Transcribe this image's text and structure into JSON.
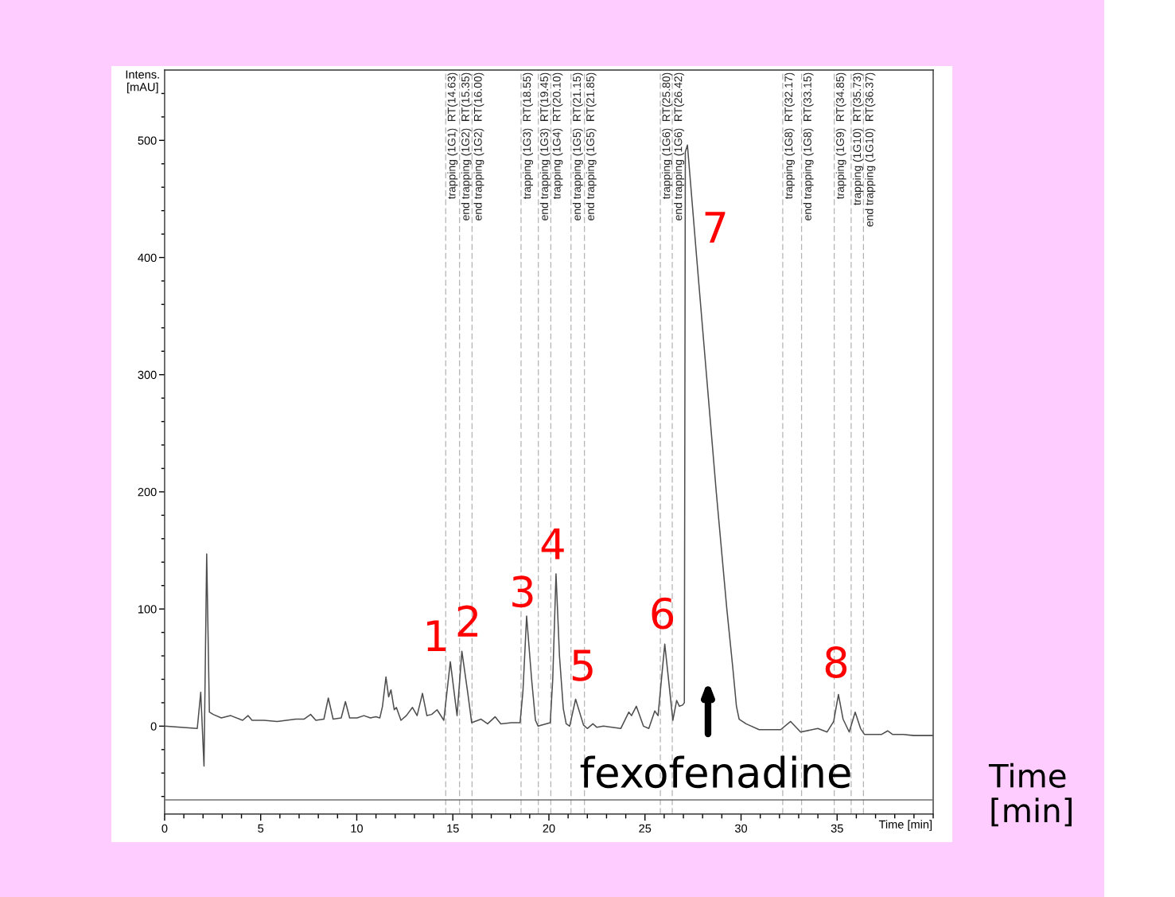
{
  "chart_data": {
    "type": "line",
    "xlabel": "Time [min]",
    "ylabel": "Intens.\n[mAU]",
    "xlim": [
      0,
      40
    ],
    "ylim": [
      -75,
      560
    ],
    "xticks": [
      0,
      {
        "value": 1,
        "label": null
      },
      {
        "value": 2,
        "label": null
      },
      {
        "value": 3,
        "label": null
      },
      {
        "value": 4,
        "label": null
      },
      5,
      {
        "value": 6,
        "label": null
      },
      {
        "value": 7,
        "label": null
      },
      {
        "value": 8,
        "label": null
      },
      {
        "value": 9,
        "label": null
      },
      10,
      {
        "value": 11,
        "label": null
      },
      {
        "value": 12,
        "label": null
      },
      {
        "value": 13,
        "label": null
      },
      {
        "value": 14,
        "label": null
      },
      15,
      {
        "value": 16,
        "label": null
      },
      {
        "value": 17,
        "label": null
      },
      {
        "value": 18,
        "label": null
      },
      {
        "value": 19,
        "label": null
      },
      20,
      {
        "value": 21,
        "label": null
      },
      {
        "value": 22,
        "label": null
      },
      {
        "value": 23,
        "label": null
      },
      {
        "value": 24,
        "label": null
      },
      25,
      {
        "value": 26,
        "label": null
      },
      {
        "value": 27,
        "label": null
      },
      {
        "value": 28,
        "label": null
      },
      {
        "value": 29,
        "label": null
      },
      30,
      {
        "value": 31,
        "label": null
      },
      {
        "value": 32,
        "label": null
      },
      {
        "value": 33,
        "label": null
      },
      {
        "value": 34,
        "label": null
      },
      35,
      {
        "value": 36,
        "label": null
      },
      {
        "value": 37,
        "label": null
      },
      {
        "value": 38,
        "label": null
      },
      {
        "value": 39,
        "label": null
      },
      {
        "value": 40,
        "label": null
      }
    ],
    "yticks": [
      {
        "value": -60,
        "label": null
      },
      {
        "value": -40,
        "label": null
      },
      {
        "value": -20,
        "label": null
      },
      0,
      {
        "value": 20,
        "label": null
      },
      {
        "value": 40,
        "label": null
      },
      {
        "value": 60,
        "label": null
      },
      {
        "value": 80,
        "label": null
      },
      100,
      {
        "value": 120,
        "label": null
      },
      {
        "value": 140,
        "label": null
      },
      {
        "value": 160,
        "label": null
      },
      {
        "value": 180,
        "label": null
      },
      200,
      {
        "value": 220,
        "label": null
      },
      {
        "value": 240,
        "label": null
      },
      {
        "value": 260,
        "label": null
      },
      {
        "value": 280,
        "label": null
      },
      300,
      {
        "value": 320,
        "label": null
      },
      {
        "value": 340,
        "label": null
      },
      {
        "value": 360,
        "label": null
      },
      {
        "value": 380,
        "label": null
      },
      400,
      {
        "value": 420,
        "label": null
      },
      {
        "value": 440,
        "label": null
      },
      {
        "value": 460,
        "label": null
      },
      {
        "value": 480,
        "label": null
      },
      500,
      {
        "value": 520,
        "label": null
      },
      {
        "value": 540,
        "label": null
      }
    ],
    "series": [
      {
        "color": "#4d4d4d",
        "x": [
          0,
          1.7,
          1.88,
          2.05,
          2.19,
          2.33,
          2.53,
          2.95,
          3.44,
          4.06,
          4.34,
          4.55,
          5.17,
          5.86,
          6.83,
          7.25,
          7.6,
          7.87,
          8.29,
          8.52,
          8.77,
          9.19,
          9.41,
          9.63,
          10.02,
          10.37,
          10.71,
          10.99,
          11.2,
          11.34,
          11.52,
          11.66,
          11.78,
          11.95,
          12.06,
          12.3,
          12.58,
          12.9,
          13.14,
          13.42,
          13.65,
          13.9,
          14.18,
          14.53,
          14.87,
          15.22,
          15.47,
          15.78,
          15.98,
          16.47,
          16.81,
          17.2,
          17.5,
          18.05,
          18.5,
          18.65,
          18.84,
          19.1,
          19.3,
          19.44,
          20.07,
          20.2,
          20.37,
          20.55,
          20.75,
          20.9,
          21.08,
          21.39,
          21.8,
          22.0,
          22.29,
          22.5,
          22.84,
          23.74,
          24.16,
          24.3,
          24.55,
          24.92,
          25.2,
          25.51,
          25.68,
          26.03,
          26.2,
          26.45,
          26.65,
          26.79,
          26.96,
          27.05,
          27.1,
          27.21,
          27.69,
          28.2,
          28.71,
          29.26,
          29.57,
          29.76,
          29.9,
          30.26,
          30.4,
          30.94,
          32.06,
          32.58,
          33.1,
          34.0,
          34.48,
          34.82,
          35.07,
          35.31,
          35.63,
          35.94,
          36.22,
          36.42,
          37.32,
          37.63,
          37.88,
          38.43,
          38.99,
          40
        ],
        "values": [
          0,
          -2,
          29,
          -34,
          147,
          12,
          10,
          7,
          9,
          5,
          9,
          5,
          5,
          4,
          6,
          6,
          10,
          5,
          6,
          24,
          6,
          7,
          21,
          7,
          7,
          9,
          7,
          8,
          7,
          17,
          42,
          25,
          31,
          14,
          16,
          5,
          9,
          16,
          9,
          28,
          9,
          10,
          14,
          5,
          55,
          9,
          64,
          28,
          3,
          6,
          2,
          8,
          2,
          3,
          3,
          30,
          94,
          40,
          5,
          0,
          3,
          40,
          130,
          60,
          15,
          2,
          0,
          23,
          1,
          -2,
          2,
          -1,
          0,
          -2,
          12,
          9,
          17,
          0,
          -2,
          13,
          9,
          70,
          44,
          5,
          22,
          17,
          18,
          20,
          490,
          496,
          400,
          300,
          200,
          100,
          50,
          17,
          6,
          2,
          1,
          -3,
          -3,
          4,
          -5,
          -2,
          -5,
          4,
          27,
          6,
          -5,
          12,
          -2,
          -7,
          -7,
          -4,
          -7,
          -7,
          -8,
          -8
        ]
      },
      {
        "color": "#6e6e6e",
        "x": [
          0,
          40
        ],
        "values": [
          -63,
          -63
        ]
      }
    ],
    "ref_lines": [
      {
        "axis": "x",
        "value": 14.63,
        "label": "trapping (1G1)  RT(14.63)",
        "color": "#b4b4b4",
        "line_style": "dashed"
      },
      {
        "axis": "x",
        "value": 15.35,
        "label": "end trapping (1G2)  RT(15.35)",
        "color": "#b4b4b4",
        "line_style": "dashed"
      },
      {
        "axis": "x",
        "value": 16.0,
        "label": "end trapping (1G2)  RT(16.00)",
        "color": "#b4b4b4",
        "line_style": "dashed"
      },
      {
        "axis": "x",
        "value": 18.55,
        "label": "trapping (1G3)  RT(18.55)",
        "color": "#b4b4b4",
        "line_style": "dashed"
      },
      {
        "axis": "x",
        "value": 19.45,
        "label": "end trapping (1G3)  RT(19.45)",
        "color": "#b4b4b4",
        "line_style": "dashed"
      },
      {
        "axis": "x",
        "value": 20.1,
        "label": "trapping (1G4)  RT(20.10)",
        "color": "#b4b4b4",
        "line_style": "dashed"
      },
      {
        "axis": "x",
        "value": 21.15,
        "label": "end trapping (1G5)  RT(21.15)",
        "color": "#b4b4b4",
        "line_style": "dashed"
      },
      {
        "axis": "x",
        "value": 21.85,
        "label": "end trapping (1G5)  RT(21.85)",
        "color": "#b4b4b4",
        "line_style": "dashed"
      },
      {
        "axis": "x",
        "value": 25.8,
        "label": "trapping (1G6)  RT(25.80)",
        "color": "#b4b4b4",
        "line_style": "dashed"
      },
      {
        "axis": "x",
        "value": 26.42,
        "label": "end trapping (1G6)  RT(26.42)",
        "color": "#b4b4b4",
        "line_style": "dashed"
      },
      {
        "axis": "x",
        "value": 32.17,
        "label": "trapping (1G8)  RT(32.17)",
        "color": "#b4b4b4",
        "line_style": "dashed"
      },
      {
        "axis": "x",
        "value": 33.15,
        "label": "end trapping (1G8)  RT(33.15)",
        "color": "#b4b4b4",
        "line_style": "dashed"
      },
      {
        "axis": "x",
        "value": 34.85,
        "label": "trapping (1G9)  RT(34.85)",
        "color": "#b4b4b4",
        "line_style": "dashed"
      },
      {
        "axis": "x",
        "value": 35.73,
        "label": "trapping (1G10)  RT(35.73)",
        "color": "#b4b4b4",
        "line_style": "dashed"
      },
      {
        "axis": "x",
        "value": 36.37,
        "label": "end trapping (1G10)  RT(36.37)",
        "color": "#b4b4b4",
        "line_style": "dashed"
      }
    ],
    "annotations": [
      {
        "text": "1",
        "x": 14.87,
        "y": 55
      },
      {
        "text": "2",
        "x": 15.47,
        "y": 64
      },
      {
        "text": "3",
        "x": 18.84,
        "y": 94
      },
      {
        "text": "4",
        "x": 20.37,
        "y": 130
      },
      {
        "text": "5",
        "x": 21.39,
        "y": 23
      },
      {
        "text": "6",
        "x": 26.03,
        "y": 70
      },
      {
        "text": "7",
        "x": 27.21,
        "y": 496
      },
      {
        "text": "8",
        "x": 35.07,
        "y": 27
      },
      "fexofenadine",
      "Time\n[min]"
    ]
  }
}
